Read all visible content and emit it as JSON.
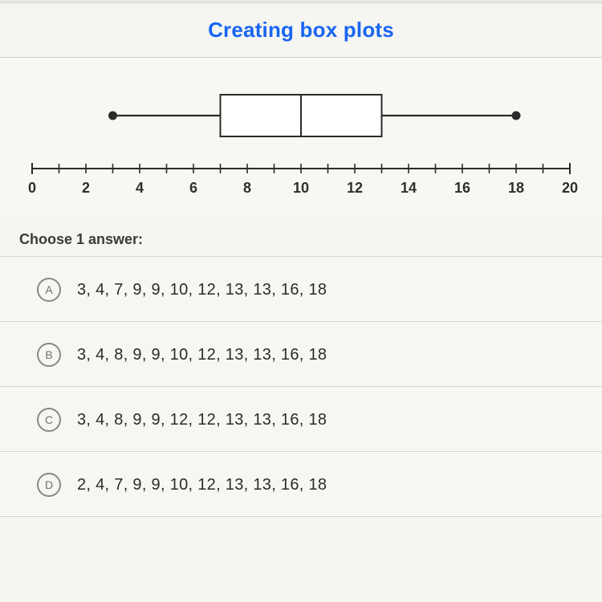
{
  "header": {
    "title": "Creating box plots"
  },
  "boxplot": {
    "type": "boxplot",
    "min": 3,
    "q1": 7,
    "median": 10,
    "q3": 13,
    "max": 18,
    "axis_min": 0,
    "axis_max": 20,
    "tick_step": 1,
    "label_step": 2,
    "tick_labels": [
      "0",
      "2",
      "4",
      "6",
      "8",
      "10",
      "12",
      "14",
      "16",
      "18",
      "20"
    ],
    "box_fill": "#ffffff",
    "box_stroke": "#2b2b29",
    "box_stroke_width": 2,
    "whisker_stroke": "#2b2b29",
    "whisker_stroke_width": 2.2,
    "dot_fill": "#2b2b29",
    "dot_radius": 5.5,
    "axis_color": "#2b2b29",
    "axis_stroke_width": 2,
    "background_color": "#f7f7f4"
  },
  "question": {
    "prompt": "Choose 1 answer:"
  },
  "answers": [
    {
      "letter": "A",
      "text": "3, 4, 7, 9, 9, 10, 12, 13, 13, 16, 18"
    },
    {
      "letter": "B",
      "text": "3, 4, 8, 9, 9, 10, 12, 13, 13, 16, 18"
    },
    {
      "letter": "C",
      "text": "3, 4, 8, 9, 9, 12, 12, 13, 13, 16, 18"
    },
    {
      "letter": "D",
      "text": "2, 4, 7, 9, 9, 10, 12, 13, 13, 16, 18"
    }
  ]
}
